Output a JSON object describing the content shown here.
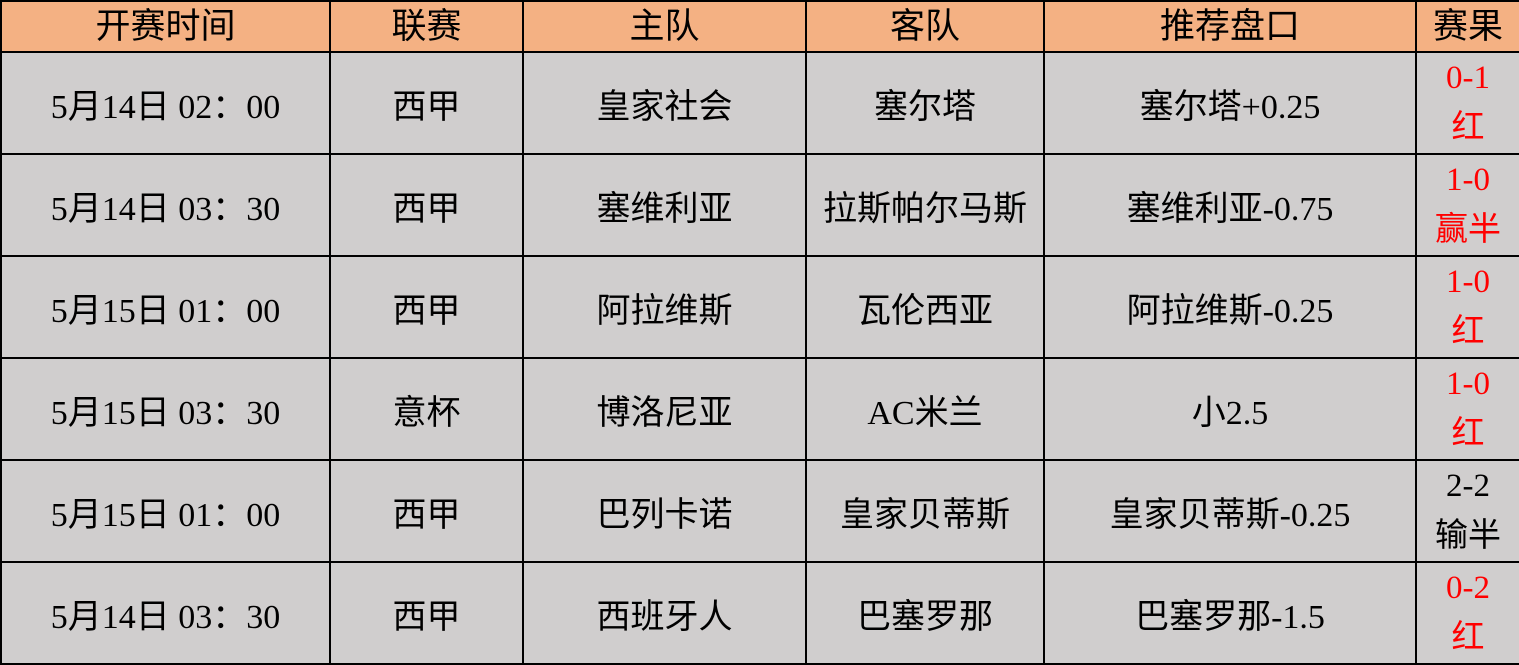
{
  "headers": [
    "开赛时间",
    "联赛",
    "主队",
    "客队",
    "推荐盘口",
    "赛果"
  ],
  "rows": [
    {
      "time": "5月14日 02：00",
      "league": "西甲",
      "home": "皇家社会",
      "away": "塞尔塔",
      "pick": "塞尔塔+0.25",
      "score": "0-1",
      "outcome": "红",
      "result_color": "#ff0000"
    },
    {
      "time": "5月14日 03：30",
      "league": "西甲",
      "home": "塞维利亚",
      "away": "拉斯帕尔马斯",
      "pick": "塞维利亚-0.75",
      "score": "1-0",
      "outcome": "赢半",
      "result_color": "#ff0000"
    },
    {
      "time": "5月15日 01：00",
      "league": "西甲",
      "home": "阿拉维斯",
      "away": "瓦伦西亚",
      "pick": "阿拉维斯-0.25",
      "score": "1-0",
      "outcome": "红",
      "result_color": "#ff0000"
    },
    {
      "time": "5月15日 03：30",
      "league": "意杯",
      "home": "博洛尼亚",
      "away": "AC米兰",
      "pick": "小2.5",
      "score": "1-0",
      "outcome": "红",
      "result_color": "#ff0000"
    },
    {
      "time": "5月15日 01：00",
      "league": "西甲",
      "home": "巴列卡诺",
      "away": "皇家贝蒂斯",
      "pick": "皇家贝蒂斯-0.25",
      "score": "2-2",
      "outcome": "输半",
      "result_color": "#000000"
    },
    {
      "time": "5月14日 03：30",
      "league": "西甲",
      "home": "西班牙人",
      "away": "巴塞罗那",
      "pick": "巴塞罗那-1.5",
      "score": "0-2",
      "outcome": "红",
      "result_color": "#ff0000"
    }
  ],
  "colors": {
    "header_bg": "#f4b183",
    "cell_bg": "#d0cece",
    "win": "#ff0000"
  }
}
